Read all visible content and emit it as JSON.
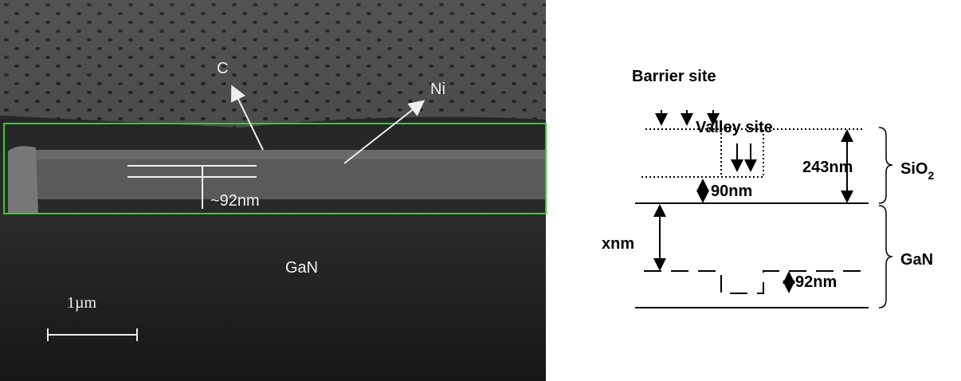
{
  "sem_image": {
    "labels": {
      "c": "C",
      "ni": "Ni",
      "thickness": "~92nm",
      "substrate": "GaN",
      "scale": "1µm"
    }
  },
  "schematic": {
    "barrier": "Barrier site",
    "valley": "Valley site",
    "total_thickness": "243nm",
    "valley_thickness": "90nm",
    "gap": "xnm",
    "step": "92nm",
    "oxide": {
      "base": "SiO",
      "sub": "2"
    },
    "substrate": "GaN"
  }
}
